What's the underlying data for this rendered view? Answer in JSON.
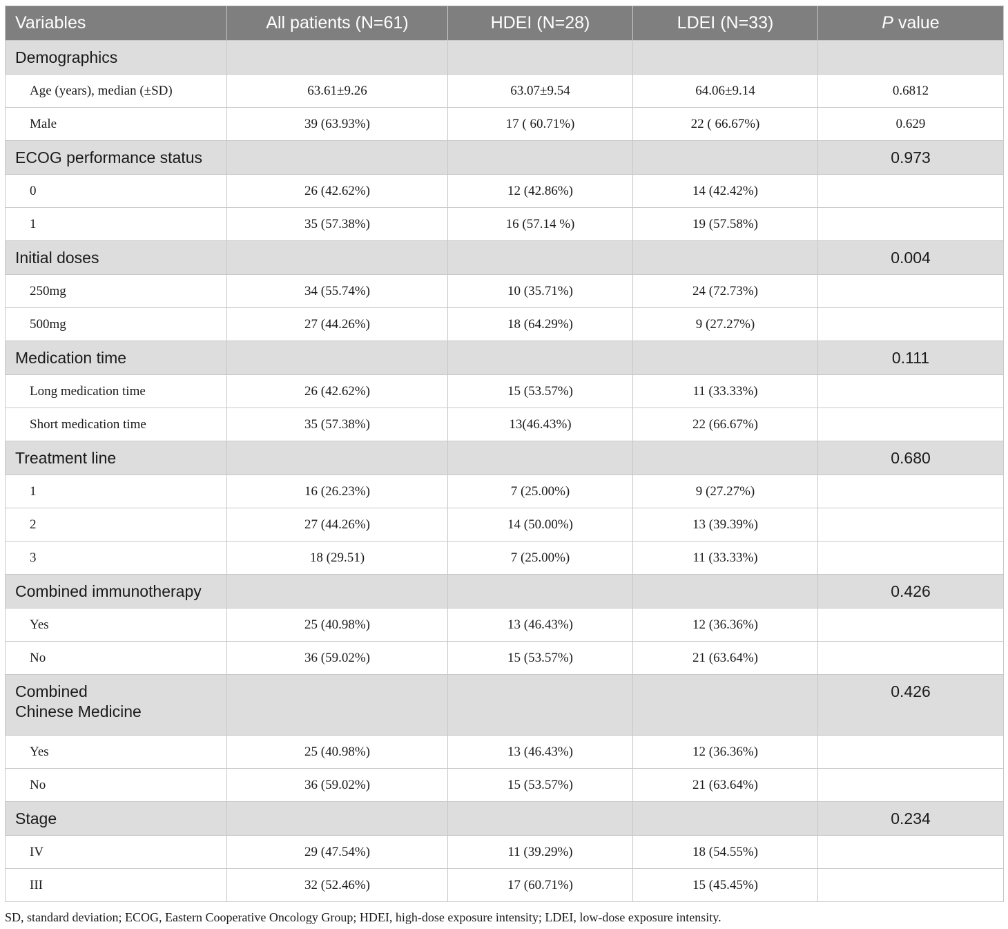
{
  "table": {
    "headers": [
      "Variables",
      "All patients (N=61)",
      "HDEI (N=28)",
      "LDEI (N=33)",
      "P",
      "value"
    ],
    "sections": [
      {
        "title": "Demographics",
        "pvalue": "",
        "rows": [
          [
            "Age (years), median (±SD)",
            "63.61±9.26",
            "63.07±9.54",
            "64.06±9.14",
            "0.6812"
          ],
          [
            "Male",
            "39 (63.93%)",
            "17 ( 60.71%)",
            "22 ( 66.67%)",
            "0.629"
          ]
        ]
      },
      {
        "title": "ECOG performance status",
        "pvalue": "0.973",
        "rows": [
          [
            "0",
            "26 (42.62%)",
            "12 (42.86%)",
            "14 (42.42%)",
            ""
          ],
          [
            "1",
            "35 (57.38%)",
            "16 (57.14 %)",
            "19 (57.58%)",
            ""
          ]
        ]
      },
      {
        "title": "Initial doses",
        "pvalue": "0.004",
        "rows": [
          [
            "250mg",
            "34 (55.74%)",
            "10 (35.71%)",
            "24 (72.73%)",
            ""
          ],
          [
            "500mg",
            "27 (44.26%)",
            "18 (64.29%)",
            "9 (27.27%)",
            ""
          ]
        ]
      },
      {
        "title": "Medication time",
        "pvalue": "0.111",
        "rows": [
          [
            "Long medication time",
            "26 (42.62%)",
            "15 (53.57%)",
            "11 (33.33%)",
            ""
          ],
          [
            "Short medication time",
            "35 (57.38%)",
            "13(46.43%)",
            "22 (66.67%)",
            ""
          ]
        ]
      },
      {
        "title": "Treatment line",
        "pvalue": "0.680",
        "rows": [
          [
            "1",
            "16 (26.23%)",
            "7 (25.00%)",
            "9 (27.27%)",
            ""
          ],
          [
            "2",
            "27 (44.26%)",
            "14 (50.00%)",
            "13 (39.39%)",
            ""
          ],
          [
            "3",
            "18 (29.51)",
            "7 (25.00%)",
            "11 (33.33%)",
            ""
          ]
        ]
      },
      {
        "title": "Combined immunotherapy",
        "pvalue": "0.426",
        "rows": [
          [
            "Yes",
            "25 (40.98%)",
            "13 (46.43%)",
            "12 (36.36%)",
            ""
          ],
          [
            "No",
            "36 (59.02%)",
            "15 (53.57%)",
            "21 (63.64%)",
            ""
          ]
        ]
      },
      {
        "title_lines": [
          "Combined",
          "Chinese Medicine"
        ],
        "pvalue": "0.426",
        "rows": [
          [
            "Yes",
            "25 (40.98%)",
            "13 (46.43%)",
            "12 (36.36%)",
            ""
          ],
          [
            "No",
            "36 (59.02%)",
            "15 (53.57%)",
            "21 (63.64%)",
            ""
          ]
        ]
      },
      {
        "title": "Stage",
        "pvalue": "0.234",
        "rows": [
          [
            "IV",
            "29 (47.54%)",
            "11 (39.29%)",
            "18 (54.55%)",
            ""
          ],
          [
            "III",
            "32 (52.46%)",
            "17 (60.71%)",
            "15 (45.45%)",
            ""
          ]
        ]
      }
    ]
  },
  "footnote": "SD, standard deviation; ECOG, Eastern Cooperative Oncology Group; HDEI, high-dose exposure intensity; LDEI, low-dose exposure intensity.",
  "colors": {
    "header_bg": "#7f7f7f",
    "section_bg": "#dddddd",
    "border": "#c8c8c8"
  }
}
